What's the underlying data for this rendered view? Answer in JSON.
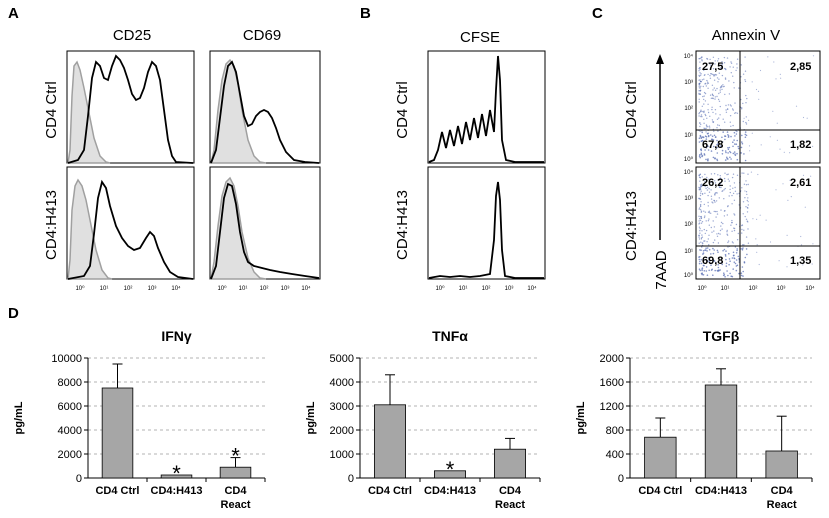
{
  "panel_labels": {
    "A": "A",
    "B": "B",
    "C": "C",
    "D": "D"
  },
  "histogram_ticks": [
    "10⁰",
    "10¹",
    "10²",
    "10³",
    "10⁴"
  ],
  "flow_ticks": [
    "10⁰",
    "10¹",
    "10²",
    "10³",
    "10⁴"
  ],
  "panel_A": {
    "columns": [
      "CD25",
      "CD69"
    ],
    "rows": [
      "CD4 Ctrl",
      "CD4:H413"
    ]
  },
  "panel_B": {
    "title": "CFSE",
    "rows": [
      "CD4 Ctrl",
      "CD4:H413"
    ]
  },
  "panel_C": {
    "title": "Annexin V",
    "axis_label": "7AAD",
    "rows": [
      "CD4 Ctrl",
      "CD4:H413"
    ],
    "quadrants": [
      {
        "ul": "27,5",
        "ur": "2,85",
        "ll": "67,8",
        "lr": "1,82"
      },
      {
        "ul": "26,2",
        "ur": "2,61",
        "ll": "69,8",
        "lr": "1,35"
      }
    ]
  },
  "colors": {
    "bar": "#a6a6a6",
    "shaded": "#e0e0e0",
    "iso_line": "#a0a0a0",
    "dot": "#5a6fb4"
  },
  "chart_data": [
    {
      "type": "bar",
      "title": "IFNγ",
      "ylabel": "pg/mL",
      "categories": [
        "CD4 Ctrl",
        "CD4:H413",
        "CD4 React"
      ],
      "values": [
        7500,
        250,
        900
      ],
      "errors": [
        2000,
        0,
        800
      ],
      "significance": [
        "",
        "*",
        "*"
      ],
      "ylim": [
        0,
        10000
      ],
      "yticks": [
        0,
        2000,
        4000,
        6000,
        8000,
        10000
      ]
    },
    {
      "type": "bar",
      "title": "TNFα",
      "ylabel": "pg/mL",
      "categories": [
        "CD4 Ctrl",
        "CD4:H413",
        "CD4 React"
      ],
      "values": [
        3050,
        300,
        1200
      ],
      "errors": [
        1250,
        0,
        450
      ],
      "significance": [
        "",
        "*",
        ""
      ],
      "ylim": [
        0,
        5000
      ],
      "yticks": [
        0,
        1000,
        2000,
        3000,
        4000,
        5000
      ]
    },
    {
      "type": "bar",
      "title": "TGFβ",
      "ylabel": "pg/mL",
      "categories": [
        "CD4 Ctrl",
        "CD4:H413",
        "CD4 React"
      ],
      "values": [
        680,
        1550,
        450
      ],
      "errors": [
        320,
        270,
        580
      ],
      "significance": [
        "",
        "",
        ""
      ],
      "ylim": [
        0,
        2000
      ],
      "yticks": [
        0,
        400,
        800,
        1200,
        1600,
        2000
      ]
    }
  ]
}
